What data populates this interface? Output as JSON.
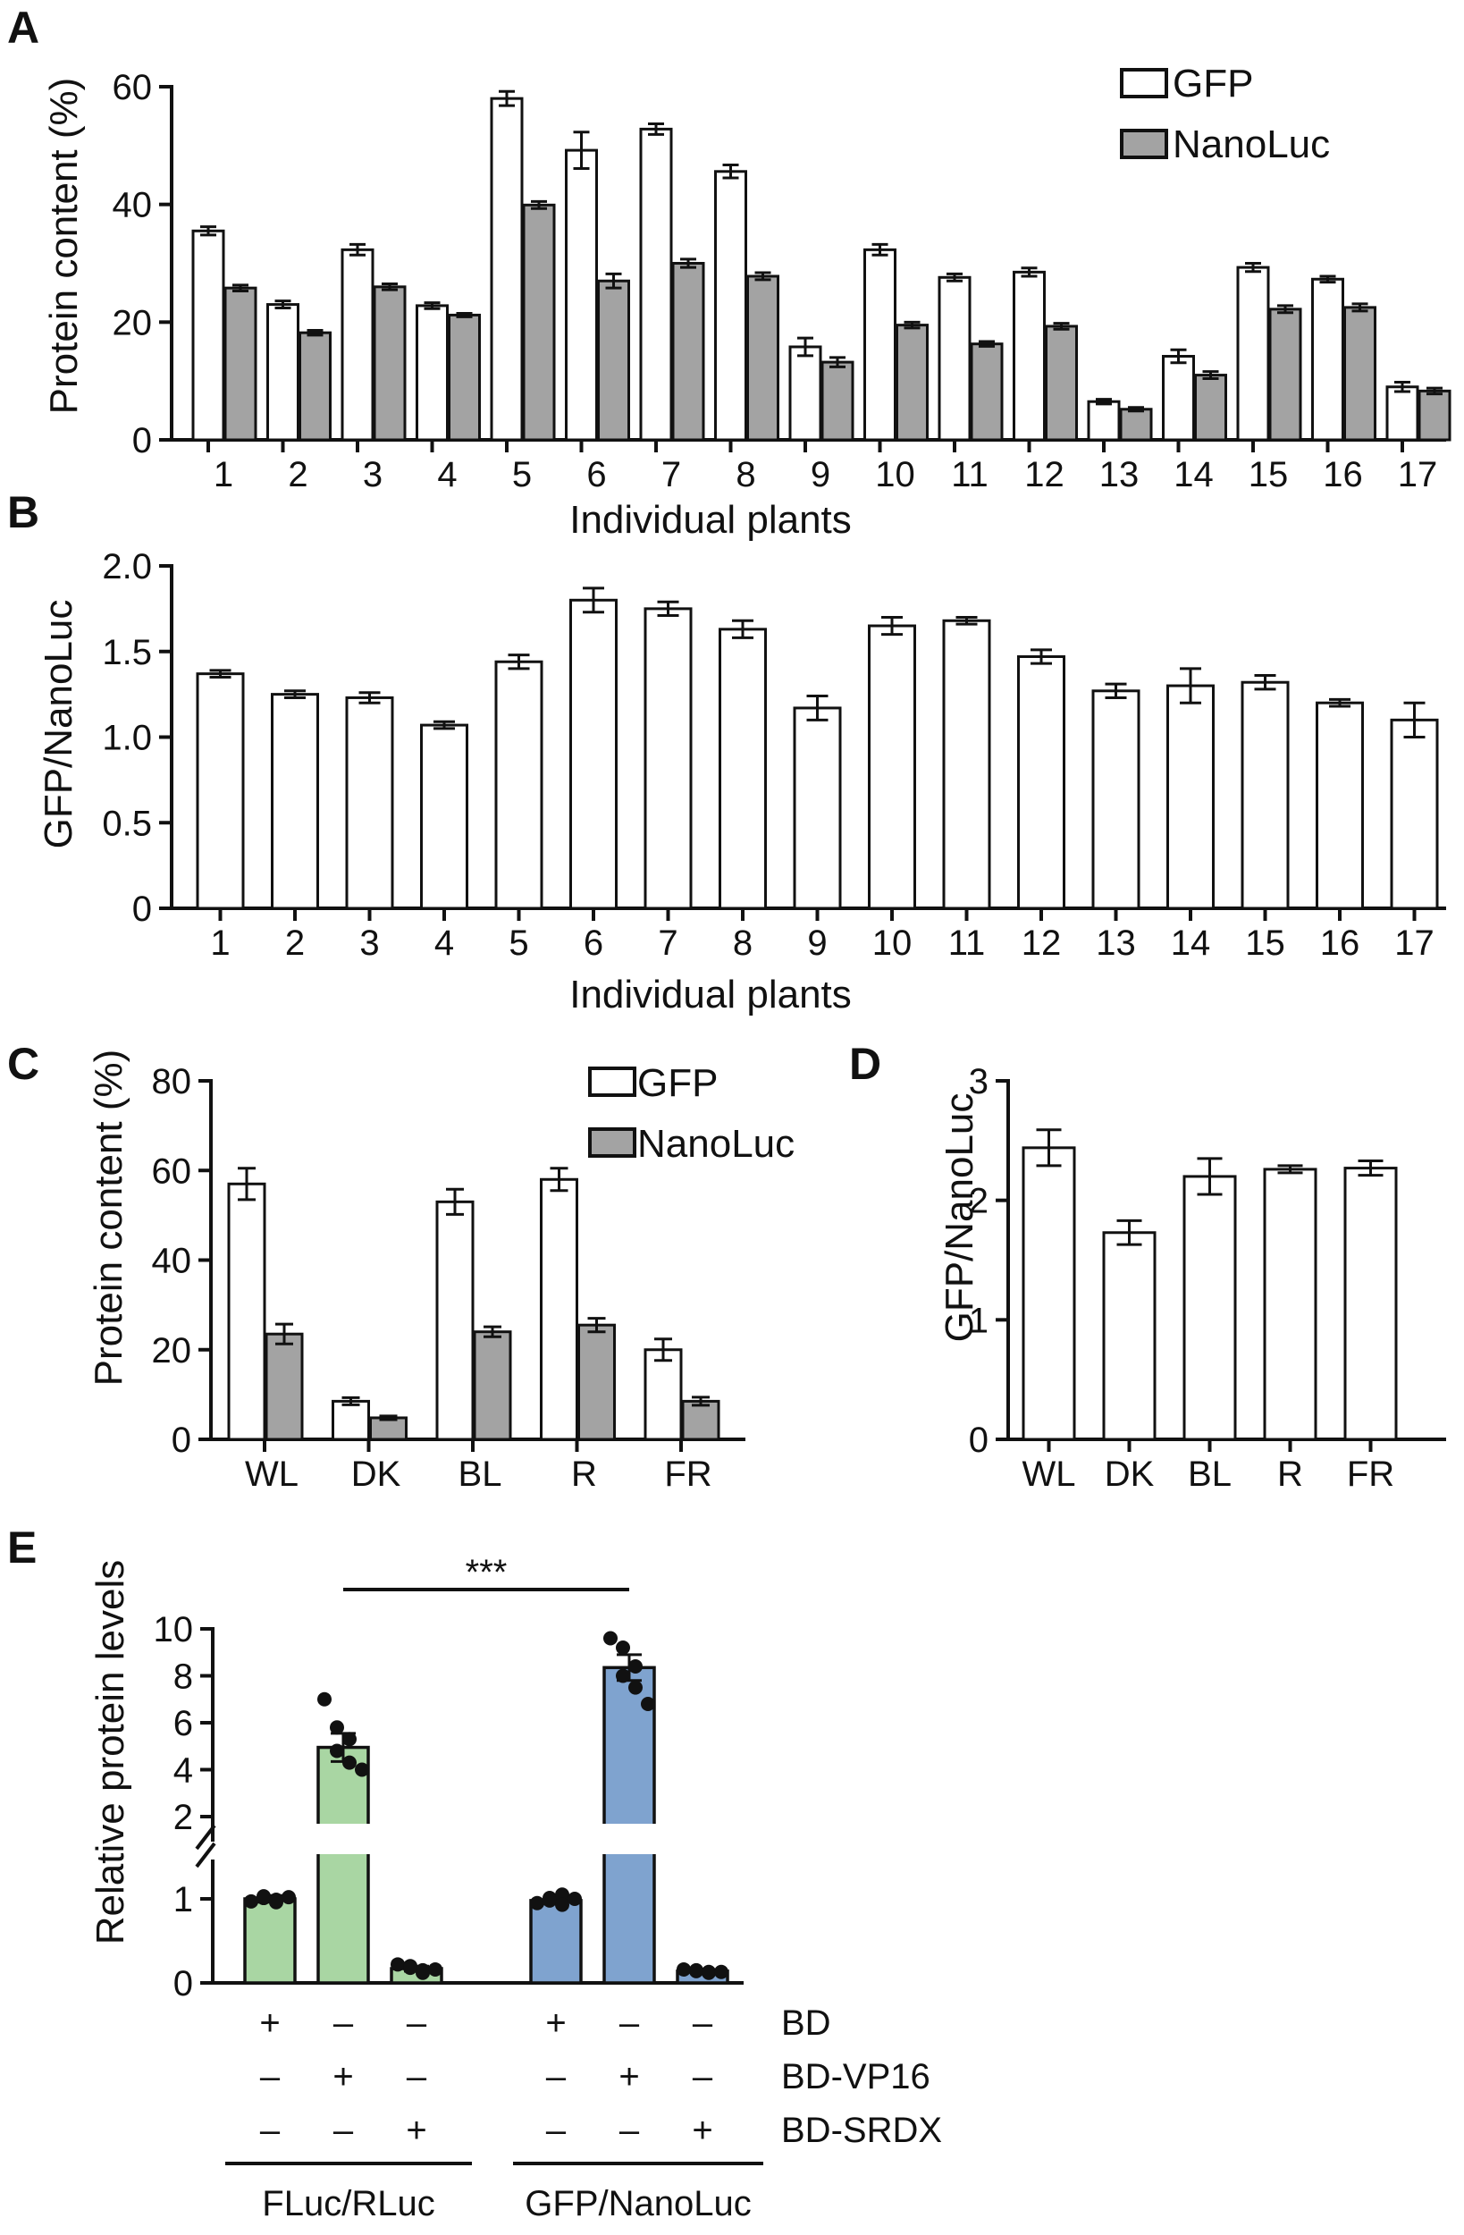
{
  "colors": {
    "gfp_bar": "#ffffff",
    "nanoluc_bar": "#a3a3a3",
    "stroke": "#111111",
    "fluc_bar": "#a9d6a3",
    "gfp_nanoluc_bar": "#7fa3cf"
  },
  "chart_data": [
    {
      "panel": "A",
      "type": "bar",
      "categories": [
        "1",
        "2",
        "3",
        "4",
        "5",
        "6",
        "7",
        "8",
        "9",
        "10",
        "11",
        "12",
        "13",
        "14",
        "15",
        "16",
        "17"
      ],
      "series": [
        {
          "name": "GFP",
          "values": [
            35.5,
            23.0,
            32.3,
            22.8,
            58.0,
            49.2,
            52.8,
            45.6,
            15.8,
            32.3,
            27.6,
            28.5,
            6.5,
            14.2,
            29.3,
            27.3,
            9.0
          ],
          "errors": [
            0.7,
            0.6,
            0.9,
            0.5,
            1.2,
            3.1,
            0.9,
            1.1,
            1.5,
            0.9,
            0.6,
            0.7,
            0.4,
            1.1,
            0.7,
            0.5,
            0.8
          ]
        },
        {
          "name": "NanoLuc",
          "values": [
            25.8,
            18.2,
            26.0,
            21.2,
            39.9,
            27.0,
            30.0,
            27.8,
            13.2,
            19.5,
            16.3,
            19.3,
            5.2,
            11.0,
            22.2,
            22.5,
            8.3
          ],
          "errors": [
            0.5,
            0.4,
            0.5,
            0.3,
            0.6,
            1.2,
            0.7,
            0.6,
            0.8,
            0.5,
            0.4,
            0.5,
            0.3,
            0.6,
            0.6,
            0.6,
            0.5
          ]
        }
      ],
      "title": "",
      "xlabel": "Individual plants",
      "ylabel": "Protein content (%)",
      "ylim": [
        0,
        60
      ],
      "yticks": [
        "0",
        "20",
        "40",
        "60"
      ],
      "legend": [
        "GFP",
        "NanoLuc"
      ],
      "legend_position": "top-right"
    },
    {
      "panel": "B",
      "type": "bar",
      "categories": [
        "1",
        "2",
        "3",
        "4",
        "5",
        "6",
        "7",
        "8",
        "9",
        "10",
        "11",
        "12",
        "13",
        "14",
        "15",
        "16",
        "17"
      ],
      "series": [
        {
          "name": "GFP/NanoLuc",
          "values": [
            1.37,
            1.25,
            1.23,
            1.07,
            1.44,
            1.8,
            1.75,
            1.63,
            1.17,
            1.65,
            1.68,
            1.47,
            1.27,
            1.3,
            1.32,
            1.2,
            1.1
          ],
          "errors": [
            0.02,
            0.02,
            0.03,
            0.02,
            0.04,
            0.07,
            0.04,
            0.05,
            0.07,
            0.05,
            0.02,
            0.04,
            0.04,
            0.1,
            0.04,
            0.02,
            0.1
          ]
        }
      ],
      "title": "",
      "xlabel": "Individual plants",
      "ylabel": "GFP/NanoLuc",
      "ylim": [
        0,
        2.0
      ],
      "yticks": [
        "0",
        "0.5",
        "1.0",
        "1.5",
        "2.0"
      ]
    },
    {
      "panel": "C",
      "type": "bar",
      "categories": [
        "WL",
        "DK",
        "BL",
        "R",
        "FR"
      ],
      "series": [
        {
          "name": "GFP",
          "values": [
            57,
            8.5,
            53,
            58,
            20
          ],
          "errors": [
            3.5,
            0.8,
            2.8,
            2.5,
            2.4
          ]
        },
        {
          "name": "NanoLuc",
          "values": [
            23.5,
            4.8,
            24,
            25.5,
            8.5
          ],
          "errors": [
            2.2,
            0.4,
            1.1,
            1.5,
            0.9
          ]
        }
      ],
      "title": "",
      "xlabel": "",
      "ylabel": "Protein content (%)",
      "ylim": [
        0,
        80
      ],
      "yticks": [
        "0",
        "20",
        "40",
        "60",
        "80"
      ],
      "legend": [
        "GFP",
        "NanoLuc"
      ],
      "legend_position": "top-right"
    },
    {
      "panel": "D",
      "type": "bar",
      "categories": [
        "WL",
        "DK",
        "BL",
        "R",
        "FR"
      ],
      "series": [
        {
          "name": "GFP/NanoLuc",
          "values": [
            2.44,
            1.73,
            2.2,
            2.26,
            2.27
          ],
          "errors": [
            0.15,
            0.1,
            0.15,
            0.03,
            0.06
          ]
        }
      ],
      "title": "",
      "xlabel": "",
      "ylabel": "GFP/NanoLuc",
      "ylim": [
        0,
        3
      ],
      "yticks": [
        "0",
        "1",
        "2",
        "3"
      ]
    },
    {
      "panel": "E",
      "type": "bar",
      "categories": [
        "FLuc/RLuc BD",
        "FLuc/RLuc BD-VP16",
        "FLuc/RLuc BD-SRDX",
        "GFP/NanoLuc BD",
        "GFP/NanoLuc BD-VP16",
        "GFP/NanoLuc BD-SRDX"
      ],
      "values": [
        1.0,
        4.95,
        0.17,
        0.98,
        8.35,
        0.14
      ],
      "errors": [
        0.04,
        0.6,
        0.03,
        0.04,
        0.55,
        0.02
      ],
      "points": [
        [
          0.97,
          1.01,
          0.99,
          1.03,
          0.96,
          1.02
        ],
        [
          7.0,
          5.8,
          5.3,
          4.8,
          4.3,
          4.0
        ],
        [
          0.22,
          0.18,
          0.15,
          0.2,
          0.12,
          0.16
        ],
        [
          0.95,
          1.01,
          1.05,
          0.98,
          0.93,
          1.0
        ],
        [
          9.6,
          9.2,
          8.4,
          8.0,
          7.5,
          6.8
        ],
        [
          0.16,
          0.14,
          0.13,
          0.15,
          0.12,
          0.13
        ]
      ],
      "ylabel": "Relative protein levels",
      "ylim": [
        0,
        10
      ],
      "axis_break": [
        2,
        2
      ],
      "yticks_lower": [
        "0",
        "1",
        "2"
      ],
      "yticks_upper": [
        "2",
        "4",
        "6",
        "8",
        "10"
      ],
      "significance": "***",
      "treatments": [
        {
          "label": "BD",
          "signs": [
            "+",
            "–",
            "–",
            "+",
            "–",
            "–"
          ]
        },
        {
          "label": "BD-VP16",
          "signs": [
            "–",
            "+",
            "–",
            "–",
            "+",
            "–"
          ]
        },
        {
          "label": "BD-SRDX",
          "signs": [
            "–",
            "–",
            "+",
            "–",
            "–",
            "+"
          ]
        }
      ],
      "groups": [
        "FLuc/RLuc",
        "GFP/NanoLuc"
      ]
    }
  ]
}
